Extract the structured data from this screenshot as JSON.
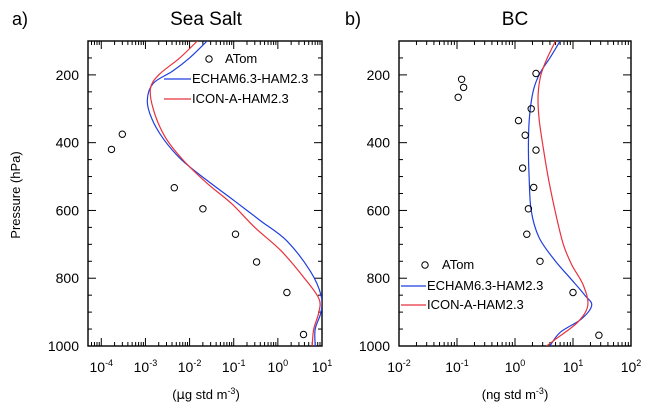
{
  "chart_data": [
    {
      "type": "scatter",
      "panel_label": "a)",
      "title": "Sea Salt",
      "ylabel": "Pressure (hPa)",
      "xlabel": {
        "pre": "(",
        "mu": "µ",
        "post": "g std m",
        "exp": "-3",
        "close": ")"
      },
      "xscale": "log",
      "xlim": [
        5e-05,
        10
      ],
      "ylim": [
        1000,
        100
      ],
      "y_inverted": true,
      "xticks": [
        {
          "base": "10",
          "exp": "-4",
          "value": 0.0001
        },
        {
          "base": "10",
          "exp": "-3",
          "value": 0.001
        },
        {
          "base": "10",
          "exp": "-2",
          "value": 0.01
        },
        {
          "base": "10",
          "exp": "-1",
          "value": 0.1
        },
        {
          "base": "10",
          "exp": "0",
          "value": 1
        },
        {
          "base": "10",
          "exp": "1",
          "value": 10
        }
      ],
      "yticks": [
        "200",
        "400",
        "600",
        "800",
        "1000"
      ],
      "ytick_values": [
        200,
        400,
        600,
        800,
        1000
      ],
      "legend": {
        "placement": "top-right",
        "observation": "ATom",
        "model1": "ECHAM6.3-HAM2.3",
        "model2": "ICON-A-HAM2.3"
      },
      "colors": {
        "model1": "#1f3fdf",
        "model2": "#e8323c",
        "observation": "#000000"
      },
      "observations": [
        {
          "x": 0.0003,
          "p": 375
        },
        {
          "x": 0.00017,
          "p": 420
        },
        {
          "x": 0.0045,
          "p": 533
        },
        {
          "x": 0.02,
          "p": 595
        },
        {
          "x": 0.11,
          "p": 670
        },
        {
          "x": 0.33,
          "p": 752
        },
        {
          "x": 1.6,
          "p": 842
        },
        {
          "x": 3.8,
          "p": 966
        }
      ],
      "series": [
        {
          "name": "ECHAM6.3-HAM2.3",
          "x": [
            0.025,
            0.01,
            0.004,
            0.0015,
            0.0011,
            0.0014,
            0.0026,
            0.0065,
            0.024,
            0.1,
            0.4,
            1.6,
            5.5,
            9.5,
            9.5,
            7,
            7
          ],
          "p": [
            100,
            150,
            190,
            225,
            275,
            330,
            390,
            450,
            510,
            570,
            630,
            690,
            780,
            850,
            900,
            950,
            1000
          ]
        },
        {
          "name": "ICON-A-HAM2.3",
          "x": [
            0.015,
            0.006,
            0.002,
            0.0013,
            0.0015,
            0.0027,
            0.007,
            0.025,
            0.09,
            0.3,
            1.2,
            4,
            8.5,
            8.5,
            6.5,
            6
          ],
          "p": [
            100,
            150,
            200,
            240,
            300,
            380,
            450,
            520,
            580,
            650,
            720,
            800,
            860,
            900,
            950,
            1000
          ]
        }
      ]
    },
    {
      "type": "scatter",
      "panel_label": "b)",
      "title": "BC",
      "ylabel": "",
      "xlabel": {
        "pre": "(",
        "mu": "",
        "post": "ng std m",
        "exp": "-3",
        "close": ")"
      },
      "xscale": "log",
      "xlim": [
        0.01,
        100
      ],
      "ylim": [
        1000,
        100
      ],
      "y_inverted": true,
      "xticks": [
        {
          "base": "10",
          "exp": "-2",
          "value": 0.01
        },
        {
          "base": "10",
          "exp": "-1",
          "value": 0.1
        },
        {
          "base": "10",
          "exp": "0",
          "value": 1
        },
        {
          "base": "10",
          "exp": "1",
          "value": 10
        },
        {
          "base": "10",
          "exp": "2",
          "value": 100
        }
      ],
      "yticks": [
        "200",
        "400",
        "600",
        "800",
        "1000"
      ],
      "ytick_values": [
        200,
        400,
        600,
        800,
        1000
      ],
      "legend": {
        "placement": "bottom-left",
        "observation": "ATom",
        "model1": "ECHAM6.3-HAM2.3",
        "model2": "ICON-A-HAM2.3"
      },
      "colors": {
        "model1": "#1f3fdf",
        "model2": "#e8323c",
        "observation": "#000000"
      },
      "observations": [
        {
          "x": 0.12,
          "p": 213
        },
        {
          "x": 0.13,
          "p": 237
        },
        {
          "x": 0.105,
          "p": 266
        },
        {
          "x": 2.3,
          "p": 196
        },
        {
          "x": 1.9,
          "p": 300
        },
        {
          "x": 1.15,
          "p": 335
        },
        {
          "x": 1.5,
          "p": 378
        },
        {
          "x": 2.3,
          "p": 422
        },
        {
          "x": 1.35,
          "p": 475
        },
        {
          "x": 2.1,
          "p": 532
        },
        {
          "x": 1.7,
          "p": 595
        },
        {
          "x": 1.6,
          "p": 670
        },
        {
          "x": 2.7,
          "p": 750
        },
        {
          "x": 10,
          "p": 842
        },
        {
          "x": 28,
          "p": 968
        }
      ],
      "series": [
        {
          "name": "ECHAM6.3-HAM2.3",
          "x": [
            6,
            4,
            2.8,
            2.2,
            1.9,
            1.75,
            1.7,
            1.75,
            1.9,
            2.6,
            5,
            9,
            16,
            21,
            14,
            6,
            4
          ],
          "p": [
            100,
            150,
            190,
            230,
            280,
            340,
            420,
            500,
            600,
            680,
            750,
            800,
            850,
            880,
            920,
            960,
            1000
          ]
        },
        {
          "name": "ICON-A-HAM2.3",
          "x": [
            5,
            3.6,
            2.8,
            2.5,
            2.6,
            3.1,
            3.9,
            5.2,
            6.8,
            9.5,
            15,
            18,
            12,
            5,
            3.5
          ],
          "p": [
            100,
            150,
            200,
            260,
            330,
            420,
            520,
            620,
            700,
            760,
            820,
            880,
            930,
            980,
            1000
          ]
        }
      ]
    }
  ]
}
